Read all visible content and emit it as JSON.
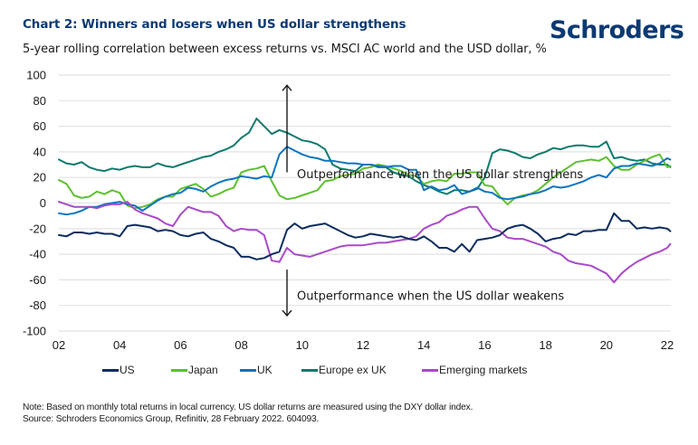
{
  "header": {
    "title": "Chart 2: Winners and losers when US dollar strengthens",
    "subtitle": "5-year rolling correlation between excess returns vs. MSCI AC world and the USD dollar, %",
    "logo": "Schroders"
  },
  "footer": {
    "note": "Note: Based on monthly total returns in local currency. US dollar returns are measured using the DXY dollar index.",
    "source": "Source: Schroders Economics Group, Refinitiv, 28 February 2022. 604093."
  },
  "colors": {
    "title": "#0b3a73",
    "grid": "#e2e2e2"
  },
  "chart_data": {
    "type": "line",
    "title": "Chart 2: Winners and losers when US dollar strengthens",
    "subtitle": "5-year rolling correlation between excess returns vs. MSCI AC world and the USD dollar, %",
    "xlabel": "",
    "ylabel": "%",
    "xlim": [
      2002,
      2022.2
    ],
    "ylim": [
      -100,
      100
    ],
    "yticks": [
      100,
      80,
      60,
      40,
      20,
      0,
      -20,
      -40,
      -60,
      -80,
      -100
    ],
    "xticks": [
      2002,
      2004,
      2006,
      2008,
      2010,
      2012,
      2014,
      2016,
      2018,
      2020,
      2022
    ],
    "xtick_labels": [
      "02",
      "04",
      "06",
      "08",
      "10",
      "12",
      "14",
      "16",
      "18",
      "20",
      "22"
    ],
    "grid": "horizontal",
    "legend_position": "bottom",
    "annotations": [
      {
        "text": "Outperformance when the US dollar strengthens",
        "direction": "up",
        "x": 2009.5,
        "y_from": 24,
        "y_to": 92,
        "text_y": 23
      },
      {
        "text": "Outperformance when the US dollar weakens",
        "direction": "down",
        "x": 2009.5,
        "y_from": -52,
        "y_to": -88,
        "text_y": -72
      }
    ],
    "x": [
      2002.0,
      2002.25,
      2002.5,
      2002.75,
      2003.0,
      2003.25,
      2003.5,
      2003.75,
      2004.0,
      2004.25,
      2004.5,
      2004.75,
      2005.0,
      2005.25,
      2005.5,
      2005.75,
      2006.0,
      2006.25,
      2006.5,
      2006.75,
      2007.0,
      2007.25,
      2007.5,
      2007.75,
      2008.0,
      2008.25,
      2008.5,
      2008.75,
      2009.0,
      2009.25,
      2009.5,
      2009.75,
      2010.0,
      2010.25,
      2010.5,
      2010.75,
      2011.0,
      2011.25,
      2011.5,
      2011.75,
      2012.0,
      2012.25,
      2012.5,
      2012.75,
      2013.0,
      2013.25,
      2013.5,
      2013.75,
      2014.0,
      2014.25,
      2014.5,
      2014.75,
      2015.0,
      2015.25,
      2015.5,
      2015.75,
      2016.0,
      2016.25,
      2016.5,
      2016.75,
      2017.0,
      2017.25,
      2017.5,
      2017.75,
      2018.0,
      2018.25,
      2018.5,
      2018.75,
      2019.0,
      2019.25,
      2019.5,
      2019.75,
      2020.0,
      2020.25,
      2020.5,
      2020.75,
      2021.0,
      2021.25,
      2021.5,
      2021.75,
      2022.0,
      2022.1
    ],
    "series": [
      {
        "name": "US",
        "color": "#0b2c5e",
        "values": [
          -25,
          -26,
          -23,
          -23,
          -24,
          -23,
          -24,
          -24,
          -26,
          -18,
          -17,
          -18,
          -19,
          -22,
          -21,
          -22,
          -25,
          -26,
          -24,
          -23,
          -28,
          -30,
          -33,
          -35,
          -42,
          -42,
          -44,
          -43,
          -40,
          -38,
          -21,
          -16,
          -20,
          -18,
          -17,
          -16,
          -19,
          -22,
          -25,
          -27,
          -26,
          -24,
          -25,
          -26,
          -27,
          -26,
          -28,
          -29,
          -26,
          -30,
          -35,
          -35,
          -38,
          -32,
          -38,
          -29,
          -28,
          -27,
          -25,
          -20,
          -18,
          -17,
          -20,
          -24,
          -30,
          -28,
          -27,
          -24,
          -25,
          -22,
          -22,
          -21,
          -21,
          -8,
          -14,
          -14,
          -20,
          -19,
          -20,
          -19,
          -20,
          -22
        ]
      },
      {
        "name": "Japan",
        "color": "#5dc02e",
        "values": [
          18,
          15,
          6,
          4,
          5,
          9,
          7,
          10,
          8,
          -2,
          -4,
          -3,
          -1,
          3,
          5,
          5,
          11,
          13,
          15,
          11,
          5,
          7,
          10,
          12,
          24,
          26,
          27,
          29,
          17,
          6,
          3,
          4,
          6,
          8,
          10,
          17,
          18,
          21,
          22,
          23,
          27,
          28,
          30,
          29,
          27,
          25,
          22,
          21,
          15,
          17,
          18,
          17,
          23,
          23,
          24,
          24,
          14,
          13,
          5,
          -1,
          4,
          6,
          7,
          10,
          15,
          20,
          24,
          28,
          32,
          33,
          34,
          33,
          36,
          29,
          26,
          26,
          30,
          33,
          36,
          38,
          28,
          29
        ]
      },
      {
        "name": "UK",
        "color": "#0f74bd",
        "values": [
          -8,
          -9,
          -8,
          -6,
          -3,
          -3,
          -1,
          0,
          1,
          -1,
          -2,
          -6,
          -2,
          2,
          5,
          7,
          8,
          12,
          11,
          9,
          13,
          16,
          18,
          19,
          21,
          20,
          19,
          21,
          20,
          38,
          44,
          41,
          38,
          36,
          35,
          33,
          33,
          32,
          31,
          31,
          30,
          30,
          29,
          28,
          29,
          29,
          26,
          26,
          10,
          13,
          10,
          11,
          14,
          7,
          9,
          12,
          9,
          8,
          4,
          3,
          4,
          5,
          7,
          8,
          10,
          13,
          12,
          13,
          15,
          17,
          20,
          22,
          20,
          27,
          29,
          29,
          31,
          30,
          29,
          31,
          35,
          34
        ]
      },
      {
        "name": "Europe ex UK",
        "color": "#0e7a6d",
        "values": [
          34,
          31,
          30,
          32,
          28,
          26,
          25,
          27,
          26,
          28,
          29,
          28,
          28,
          31,
          29,
          28,
          30,
          32,
          34,
          36,
          37,
          40,
          42,
          45,
          51,
          55,
          66,
          60,
          54,
          57,
          55,
          52,
          49,
          48,
          46,
          42,
          30,
          27,
          26,
          25,
          30,
          30,
          28,
          28,
          24,
          22,
          21,
          17,
          14,
          12,
          9,
          7,
          10,
          10,
          9,
          11,
          20,
          39,
          42,
          41,
          39,
          36,
          35,
          38,
          40,
          43,
          42,
          44,
          45,
          45,
          44,
          44,
          48,
          35,
          36,
          34,
          33,
          34,
          31,
          30,
          30,
          28
        ]
      },
      {
        "name": "Emerging markets",
        "color": "#a94ac8",
        "values": [
          1,
          -1,
          -3,
          -3,
          -3,
          -4,
          -2,
          -1,
          -1,
          1,
          -5,
          -8,
          -10,
          -12,
          -16,
          -18,
          -9,
          -3,
          -5,
          -7,
          -7,
          -10,
          -18,
          -22,
          -20,
          -21,
          -21,
          -25,
          -45,
          -46,
          -35,
          -40,
          -41,
          -42,
          -40,
          -38,
          -36,
          -34,
          -33,
          -33,
          -33,
          -32,
          -31,
          -31,
          -30,
          -29,
          -28,
          -26,
          -20,
          -17,
          -15,
          -10,
          -8,
          -5,
          -3,
          -3,
          -12,
          -20,
          -22,
          -27,
          -28,
          -28,
          -30,
          -32,
          -34,
          -38,
          -40,
          -45,
          -47,
          -48,
          -49,
          -52,
          -55,
          -62,
          -55,
          -50,
          -46,
          -43,
          -40,
          -38,
          -35,
          -32
        ]
      }
    ]
  }
}
